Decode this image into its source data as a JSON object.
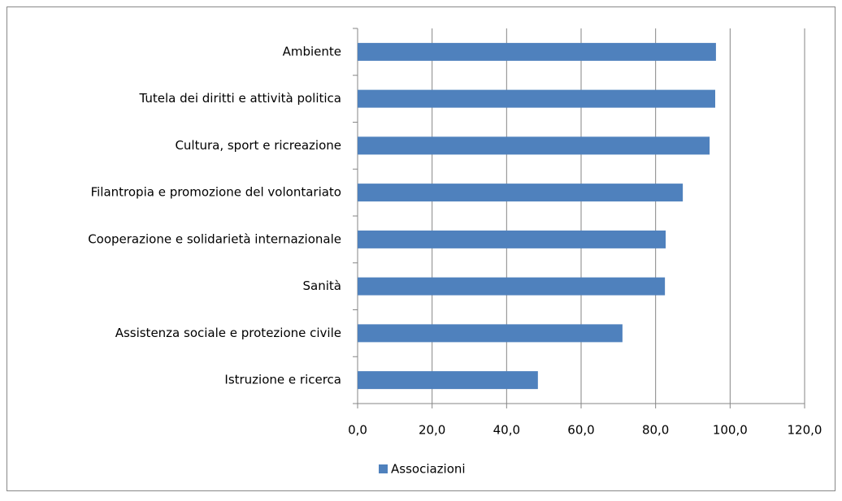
{
  "chart_data": {
    "type": "bar",
    "orientation": "horizontal",
    "categories": [
      "Ambiente",
      "Tutela dei diritti e attività politica",
      "Cultura, sport e ricreazione",
      "Filantropia e promozione del volontariato",
      "Cooperazione e solidarietà internazionale",
      "Sanità",
      "Assistenza sociale e protezione civile",
      "Istruzione e ricerca"
    ],
    "series": [
      {
        "name": "Associazioni",
        "color": "#4f81bd",
        "values": [
          96.2,
          96.0,
          94.5,
          87.3,
          82.7,
          82.5,
          71.1,
          48.4
        ]
      }
    ],
    "xlim": [
      0,
      120
    ],
    "xticks": [
      {
        "value": 0,
        "label": "0,0"
      },
      {
        "value": 20,
        "label": "20,0"
      },
      {
        "value": 40,
        "label": "40,0"
      },
      {
        "value": 60,
        "label": "60,0"
      },
      {
        "value": 80,
        "label": "80,0"
      },
      {
        "value": 100,
        "label": "100,0"
      },
      {
        "value": 120,
        "label": "120,0"
      }
    ],
    "grid": true,
    "legend": "bottom"
  }
}
